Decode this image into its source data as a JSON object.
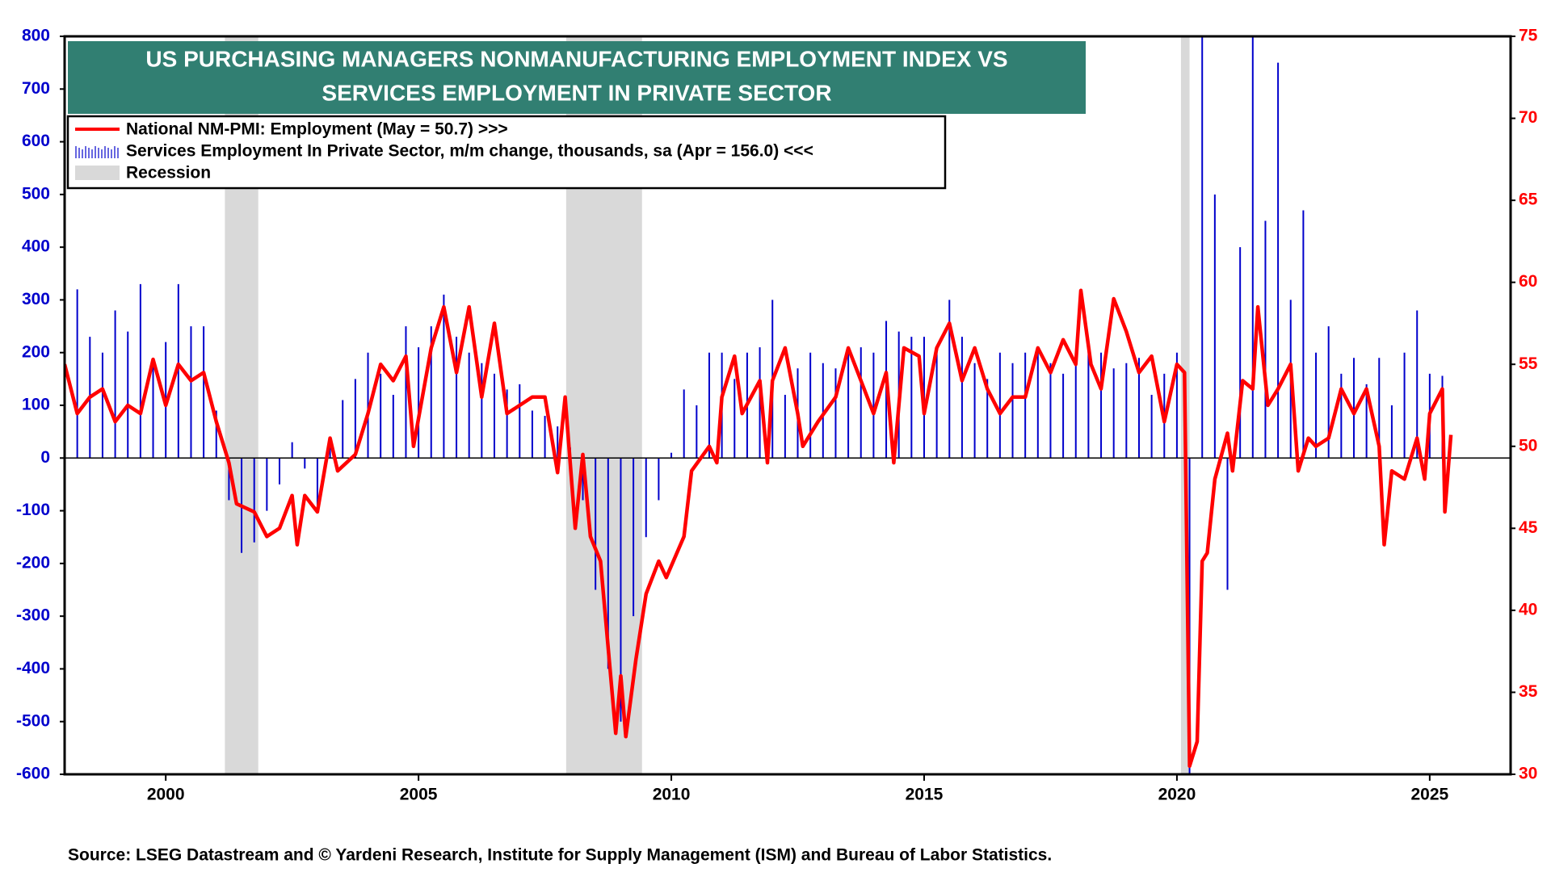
{
  "chart_data": {
    "type": "bar-line",
    "title": [
      "US PURCHASING MANAGERS NONMANUFACTURING EMPLOYMENT INDEX VS",
      "SERVICES  EMPLOYMENT IN PRIVATE SECTOR"
    ],
    "source": "Source: LSEG Datastream and © Yardeni Research, Institute for Supply Management (ISM) and Bureau of Labor Statistics.",
    "recession_label": "Recession",
    "recession_color": "#d9d9d9",
    "recessions": [
      [
        2001.17,
        2001.83
      ],
      [
        2007.92,
        2009.42
      ],
      [
        2020.08,
        2020.25
      ]
    ],
    "xlim": [
      1998,
      2026.6
    ],
    "xticks": [
      2000,
      2005,
      2010,
      2015,
      2020,
      2025
    ],
    "ylim": [
      -600,
      800
    ],
    "yticks": [
      -600,
      -500,
      -400,
      -300,
      -200,
      -100,
      0,
      100,
      200,
      300,
      400,
      500,
      600,
      700,
      800
    ],
    "y2lim": [
      30,
      75
    ],
    "y2ticks": [
      30,
      35,
      40,
      45,
      50,
      55,
      60,
      65,
      70,
      75
    ],
    "series": [
      {
        "name": "National NM-PMI: Employment (May = 50.7) >>>",
        "type": "line",
        "axis": "y2",
        "color": "#ff0000",
        "x": [
          1998.0,
          1998.25,
          1998.5,
          1998.75,
          1999.0,
          1999.25,
          1999.5,
          1999.75,
          2000.0,
          2000.25,
          2000.5,
          2000.75,
          2001.0,
          2001.25,
          2001.4,
          2001.75,
          2002.0,
          2002.25,
          2002.5,
          2002.6,
          2002.75,
          2003.0,
          2003.25,
          2003.4,
          2003.75,
          2004.0,
          2004.25,
          2004.5,
          2004.75,
          2004.9,
          2005.25,
          2005.5,
          2005.75,
          2006.0,
          2006.25,
          2006.5,
          2006.75,
          2007.0,
          2007.25,
          2007.5,
          2007.75,
          2007.9,
          2008.1,
          2008.25,
          2008.4,
          2008.6,
          2008.9,
          2009.0,
          2009.1,
          2009.3,
          2009.5,
          2009.75,
          2009.9,
          2010.25,
          2010.4,
          2010.75,
          2010.9,
          2011.0,
          2011.25,
          2011.4,
          2011.75,
          2011.9,
          2012.0,
          2012.25,
          2012.5,
          2012.6,
          2012.9,
          2013.25,
          2013.5,
          2013.75,
          2014.0,
          2014.25,
          2014.4,
          2014.6,
          2014.9,
          2015.0,
          2015.25,
          2015.5,
          2015.75,
          2016.0,
          2016.25,
          2016.5,
          2016.75,
          2017.0,
          2017.25,
          2017.5,
          2017.75,
          2018.0,
          2018.1,
          2018.3,
          2018.5,
          2018.75,
          2019.0,
          2019.25,
          2019.5,
          2019.75,
          2020.0,
          2020.15,
          2020.25,
          2020.4,
          2020.5,
          2020.6,
          2020.75,
          2021.0,
          2021.1,
          2021.3,
          2021.5,
          2021.6,
          2021.8,
          2022.0,
          2022.25,
          2022.4,
          2022.6,
          2022.75,
          2023.0,
          2023.25,
          2023.5,
          2023.75,
          2024.0,
          2024.1,
          2024.25,
          2024.5,
          2024.75,
          2024.9,
          2025.0,
          2025.25,
          2025.3,
          2025.42
        ],
        "values": [
          55,
          52,
          53,
          53.5,
          51.5,
          52.5,
          52,
          55.3,
          52.5,
          55,
          54,
          54.5,
          51.5,
          49,
          46.5,
          46,
          44.5,
          45,
          47,
          44,
          47,
          46,
          50.5,
          48.5,
          49.5,
          52,
          55,
          54,
          55.5,
          50,
          56,
          58.5,
          54.5,
          58.5,
          53,
          57.5,
          52,
          52.5,
          53,
          53,
          48.4,
          53,
          45,
          49.5,
          44.5,
          43,
          32.5,
          36,
          32.3,
          37,
          41,
          43,
          42,
          44.5,
          48.5,
          50,
          49,
          53,
          55.5,
          52,
          54,
          49,
          54,
          56,
          52,
          50,
          51.5,
          53,
          56,
          54,
          52,
          54.5,
          49,
          56,
          55.5,
          52,
          56,
          57.5,
          54,
          56,
          53.5,
          52,
          53,
          53,
          56,
          54.5,
          56.5,
          55,
          59.5,
          55,
          53.5,
          59,
          57,
          54.5,
          55.5,
          51.5,
          55,
          54.5,
          30.5,
          32,
          43,
          43.5,
          48,
          50.8,
          48.5,
          54,
          53.5,
          58.5,
          52.5,
          53.5,
          55,
          48.5,
          50.5,
          50,
          50.5,
          53.5,
          52,
          53.5,
          50,
          44,
          48.5,
          48,
          50.5,
          48,
          52,
          53.5,
          46,
          50.7
        ]
      },
      {
        "name": "Services Employment In Private Sector, m/m change, thousands, sa  (Apr = 156.0) <<<",
        "type": "bar",
        "axis": "y",
        "color": "#0000cc",
        "x": [
          1998.0,
          1998.25,
          1998.5,
          1998.75,
          1999.0,
          1999.25,
          1999.5,
          1999.75,
          2000.0,
          2000.25,
          2000.5,
          2000.75,
          2001.0,
          2001.25,
          2001.5,
          2001.75,
          2002.0,
          2002.25,
          2002.5,
          2002.75,
          2003.0,
          2003.25,
          2003.5,
          2003.75,
          2004.0,
          2004.25,
          2004.5,
          2004.75,
          2005.0,
          2005.25,
          2005.5,
          2005.75,
          2006.0,
          2006.25,
          2006.5,
          2006.75,
          2007.0,
          2007.25,
          2007.5,
          2007.75,
          2008.0,
          2008.25,
          2008.5,
          2008.75,
          2009.0,
          2009.25,
          2009.5,
          2009.75,
          2010.0,
          2010.25,
          2010.5,
          2010.75,
          2011.0,
          2011.25,
          2011.5,
          2011.75,
          2012.0,
          2012.25,
          2012.5,
          2012.75,
          2013.0,
          2013.25,
          2013.5,
          2013.75,
          2014.0,
          2014.25,
          2014.5,
          2014.75,
          2015.0,
          2015.25,
          2015.5,
          2015.75,
          2016.0,
          2016.25,
          2016.5,
          2016.75,
          2017.0,
          2017.25,
          2017.5,
          2017.75,
          2018.0,
          2018.25,
          2018.5,
          2018.75,
          2019.0,
          2019.25,
          2019.5,
          2019.75,
          2020.0,
          2020.25,
          2020.5,
          2020.75,
          2021.0,
          2021.25,
          2021.5,
          2021.75,
          2022.0,
          2022.25,
          2022.5,
          2022.75,
          2023.0,
          2023.25,
          2023.5,
          2023.75,
          2024.0,
          2024.25,
          2024.5,
          2024.75,
          2025.0,
          2025.25
        ],
        "values": [
          200,
          320,
          230,
          200,
          280,
          240,
          330,
          190,
          220,
          330,
          250,
          250,
          90,
          -80,
          -180,
          -160,
          -100,
          -50,
          30,
          -20,
          -100,
          40,
          110,
          150,
          200,
          160,
          120,
          250,
          210,
          250,
          310,
          230,
          200,
          180,
          160,
          130,
          140,
          90,
          80,
          60,
          20,
          -80,
          -250,
          -400,
          -500,
          -300,
          -150,
          -80,
          10,
          130,
          100,
          200,
          200,
          150,
          200,
          210,
          300,
          120,
          170,
          200,
          180,
          170,
          200,
          210,
          200,
          260,
          240,
          230,
          230,
          210,
          300,
          230,
          180,
          150,
          200,
          180,
          200,
          210,
          180,
          160,
          200,
          220,
          200,
          170,
          180,
          190,
          120,
          160,
          200,
          -600,
          800,
          500,
          -250,
          400,
          800,
          450,
          750,
          300,
          470,
          200,
          250,
          160,
          190,
          140,
          190,
          100,
          200,
          280,
          160,
          156
        ]
      }
    ]
  }
}
